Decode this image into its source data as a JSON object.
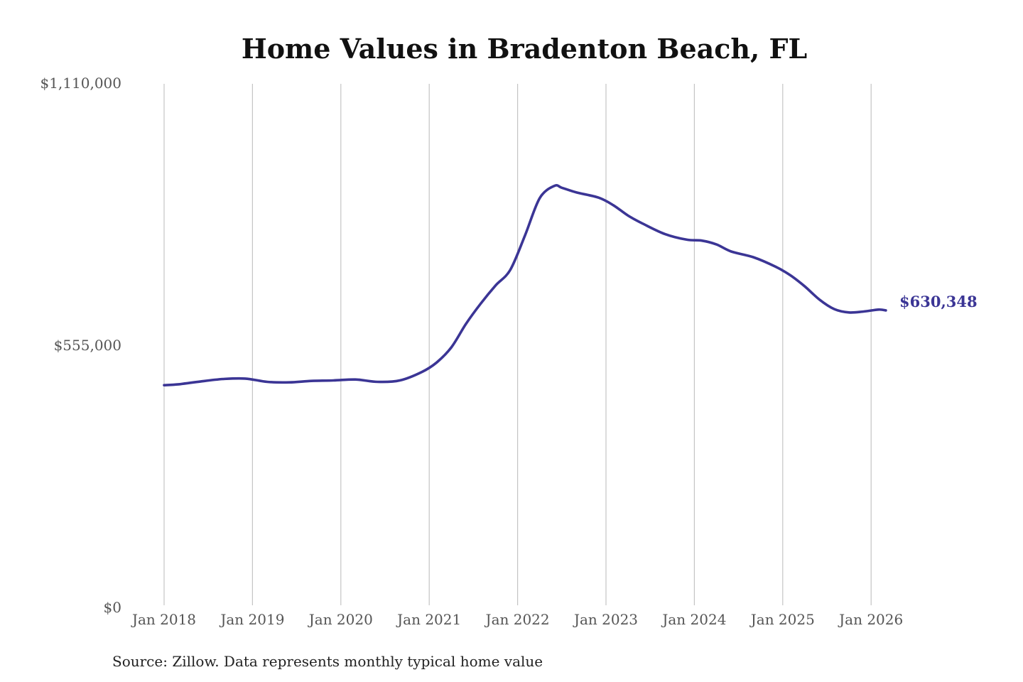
{
  "chart_data": {
    "type": "line",
    "title": "Home Values in Bradenton Beach, FL",
    "source": "Source: Zillow. Data represents monthly typical home value",
    "xlabel": "",
    "ylabel": "",
    "ylim": [
      0,
      1110000
    ],
    "yticks": [
      {
        "value": 1110000,
        "label": "$1,110,000"
      },
      {
        "value": 555000,
        "label": "$555,000"
      },
      {
        "value": 0,
        "label": "$0"
      }
    ],
    "xticks": [
      {
        "value": "2018-01",
        "label": "Jan 2018"
      },
      {
        "value": "2019-01",
        "label": "Jan 2019"
      },
      {
        "value": "2020-01",
        "label": "Jan 2020"
      },
      {
        "value": "2021-01",
        "label": "Jan 2021"
      },
      {
        "value": "2022-01",
        "label": "Jan 2022"
      },
      {
        "value": "2023-01",
        "label": "Jan 2023"
      },
      {
        "value": "2024-01",
        "label": "Jan 2024"
      },
      {
        "value": "2025-01",
        "label": "Jan 2025"
      },
      {
        "value": "2026-01",
        "label": "Jan 2026"
      }
    ],
    "grid": "vertical",
    "line_color": "#3b3595",
    "end_label": "$630,348",
    "series": [
      {
        "x": [
          "2018-01",
          "2018-03",
          "2018-06",
          "2018-09",
          "2018-12",
          "2019-03",
          "2019-06",
          "2019-09",
          "2019-12",
          "2020-03",
          "2020-06",
          "2020-09",
          "2020-12",
          "2021-02",
          "2021-04",
          "2021-06",
          "2021-08",
          "2021-10",
          "2021-12",
          "2022-02",
          "2022-04",
          "2022-06",
          "2022-07",
          "2022-09",
          "2022-12",
          "2023-02",
          "2023-04",
          "2023-06",
          "2023-09",
          "2023-12",
          "2024-02",
          "2024-04",
          "2024-06",
          "2024-09",
          "2024-12",
          "2025-02",
          "2025-04",
          "2025-06",
          "2025-08",
          "2025-10",
          "2025-12",
          "2026-02",
          "2026-03"
        ],
        "y": [
          472000,
          474000,
          480000,
          485000,
          486000,
          479000,
          478000,
          481000,
          482000,
          484000,
          479000,
          482000,
          500000,
          520000,
          552000,
          602000,
          645000,
          683000,
          716000,
          789000,
          868000,
          894000,
          890000,
          880000,
          869000,
          853000,
          831000,
          814000,
          792000,
          780000,
          778000,
          770000,
          755000,
          743000,
          723000,
          705000,
          681000,
          653000,
          633000,
          626000,
          628000,
          632000,
          630348
        ]
      }
    ]
  }
}
